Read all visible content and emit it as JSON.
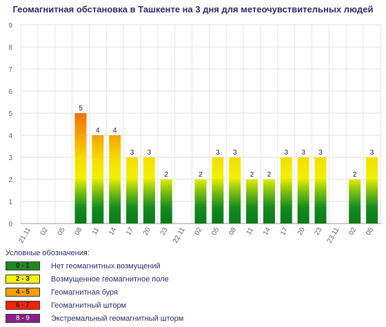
{
  "chart_data": {
    "type": "bar",
    "title": "Геомагнитная обстановка в Ташкенте на 3 дня для метеочувствительных людей",
    "ylim": [
      0,
      9
    ],
    "yticks": [
      "0",
      "1",
      "2",
      "3",
      "4",
      "5",
      "6",
      "7",
      "8",
      "9"
    ],
    "categories": [
      "21.11",
      "02",
      "05",
      "08",
      "11",
      "14",
      "17",
      "20",
      "23",
      "22.11",
      "02",
      "05",
      "08",
      "11",
      "14",
      "17",
      "20",
      "23",
      "23.11",
      "02",
      "05"
    ],
    "values": [
      0,
      0,
      0,
      5,
      4,
      4,
      3,
      3,
      2,
      0,
      2,
      3,
      3,
      2,
      2,
      3,
      3,
      3,
      0,
      2,
      3
    ],
    "value_labels": [
      "",
      "",
      "",
      "5",
      "4",
      "4",
      "3",
      "3",
      "2",
      "",
      "2",
      "3",
      "3",
      "2",
      "2",
      "3",
      "3",
      "3",
      "",
      "2",
      "3"
    ],
    "grid": true
  },
  "legend": {
    "title": "Условные обозначения:",
    "items": [
      {
        "range": "0 - 1",
        "text": "Нет геомагнитных возмущений",
        "color": "#1e8a1e",
        "text_color": "#222222"
      },
      {
        "range": "2 - 3",
        "text": "Возмущенное геомагнитное поле",
        "color": "#f5f500",
        "text_color": "#222222"
      },
      {
        "range": "4 - 5",
        "text": "Геомагнитная буря",
        "color": "#f5a000",
        "text_color": "#222222"
      },
      {
        "range": "6 - 7",
        "text": "Геомагнитный шторм",
        "color": "#ff2000",
        "text_color": "#222222"
      },
      {
        "range": "8 - 9",
        "text": "Экстремальный геомагнитный шторм",
        "color": "#8a1e8a",
        "text_color": "#cccccc"
      }
    ]
  }
}
